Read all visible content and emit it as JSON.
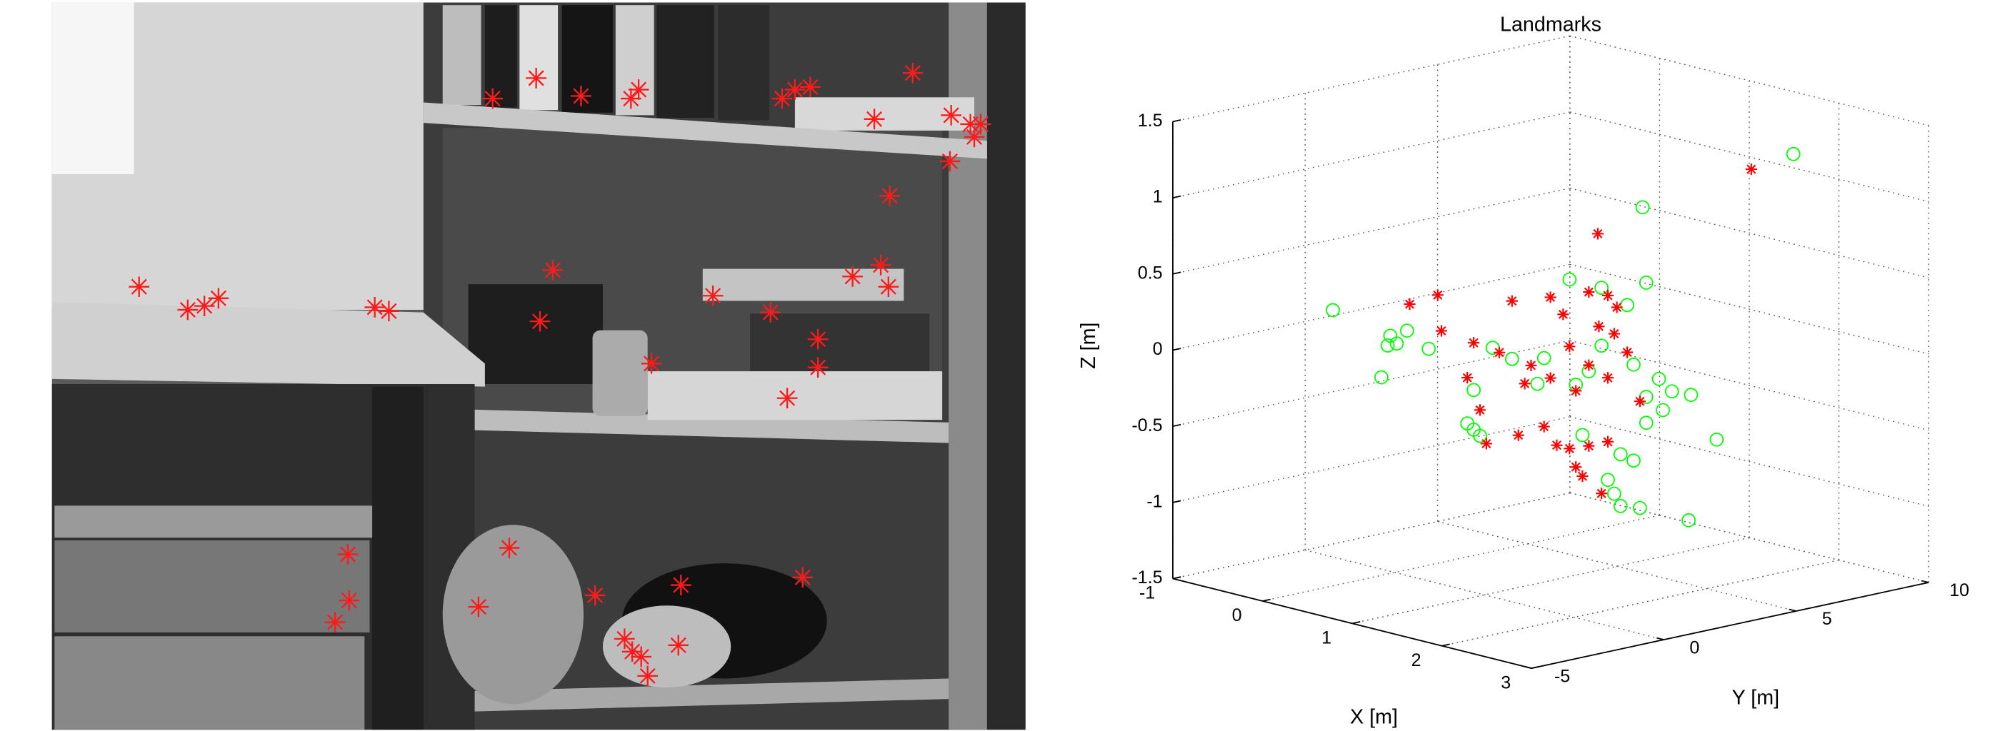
{
  "chart_data": {
    "type": "scatter3d",
    "title": "Landmarks",
    "xlabel": "X [m]",
    "ylabel": "Y [m]",
    "zlabel": "Z [m]",
    "xlim": [
      -1,
      3
    ],
    "ylim": [
      -5,
      10
    ],
    "zlim": [
      -1.5,
      1.5
    ],
    "xticks": [
      -1,
      0,
      1,
      2,
      3
    ],
    "yticks": [
      -5,
      0,
      5,
      10
    ],
    "zticks": [
      -1.5,
      -1,
      -0.5,
      0,
      0.5,
      1,
      1.5
    ],
    "grid": true,
    "series": [
      {
        "marker": "o",
        "color": "#00ff00",
        "x": [
          0,
          0,
          0,
          0,
          0,
          0,
          0,
          2,
          1,
          1,
          1,
          1,
          1,
          1,
          1,
          1,
          1,
          1,
          1,
          1,
          1,
          1,
          1,
          1,
          1,
          1,
          1,
          1,
          1,
          1,
          1,
          1,
          1,
          1,
          1,
          1,
          1,
          1,
          1,
          1
        ],
        "y": [
          -2.34,
          -0.17,
          0.07,
          -0.27,
          0.46,
          1.28,
          -0.51,
          8.28,
          5.97,
          0.31,
          1.04,
          3.21,
          4.42,
          5.39,
          6.11,
          -0.41,
          -0.65,
          -0.17,
          2.0,
          3.94,
          5.63,
          6.59,
          7.08,
          7.8,
          6.11,
          6.74,
          6.11,
          8.77,
          -0.41,
          3.7,
          5.14,
          5.63,
          4.66,
          4.9,
          5.14,
          5.87,
          7.71,
          2.25,
          3.45,
          4.42
        ],
        "z": [
          0.31,
          0.06,
          0,
          0,
          0.07,
          -0.08,
          -0.2,
          1.23,
          0.82,
          0.11,
          0.01,
          0.45,
          0.35,
          0.2,
          0.32,
          -0.14,
          -0.35,
          -0.45,
          -0.19,
          -0.18,
          -0.2,
          -0.33,
          -0.43,
          -0.48,
          -0.43,
          -0.54,
          -0.6,
          -0.81,
          -0.4,
          -0.59,
          -0.77,
          -0.83,
          -0.92,
          -1.02,
          -1.11,
          -1.15,
          -1.3,
          -0.03,
          -0.25,
          -0.03
        ]
      },
      {
        "marker": "*",
        "color": "#ff0000",
        "x": [
          2,
          1,
          0,
          0,
          0,
          1,
          1,
          1,
          1,
          1,
          1,
          1,
          1,
          1,
          1,
          1,
          1,
          1,
          1,
          1,
          1,
          1,
          1,
          1,
          1,
          1,
          1,
          1,
          1,
          1,
          1,
          1,
          1,
          1,
          1,
          1
        ],
        "y": [
          6.69,
          4.28,
          0.56,
          1.62,
          1.76,
          1.04,
          2.49,
          3.94,
          5.0,
          4.66,
          -0.41,
          0.56,
          1.76,
          3.21,
          3.94,
          2.49,
          4.66,
          5.39,
          5.87,
          -0.17,
          0.07,
          1.28,
          2.25,
          3.21,
          3.45,
          3.94,
          4.66,
          2.73,
          3.7,
          4.42,
          -0.65,
          1.52,
          3.45,
          4.9,
          4.32,
          2.97
        ],
        "z": [
          1.19,
          0.71,
          0.24,
          0.26,
          0.02,
          0.39,
          0.36,
          0.34,
          0.2,
          0.29,
          0.17,
          0.07,
          -0.06,
          0.01,
          -0.14,
          -0.17,
          -0.25,
          -0.11,
          -0.45,
          -0.28,
          -0.51,
          -0.5,
          -0.48,
          -0.66,
          -0.79,
          -0.67,
          -0.67,
          -0.62,
          -0.86,
          -1.0,
          -0.05,
          -0.17,
          -0.29,
          0.03,
          0.1,
          0.23
        ]
      }
    ]
  }
}
